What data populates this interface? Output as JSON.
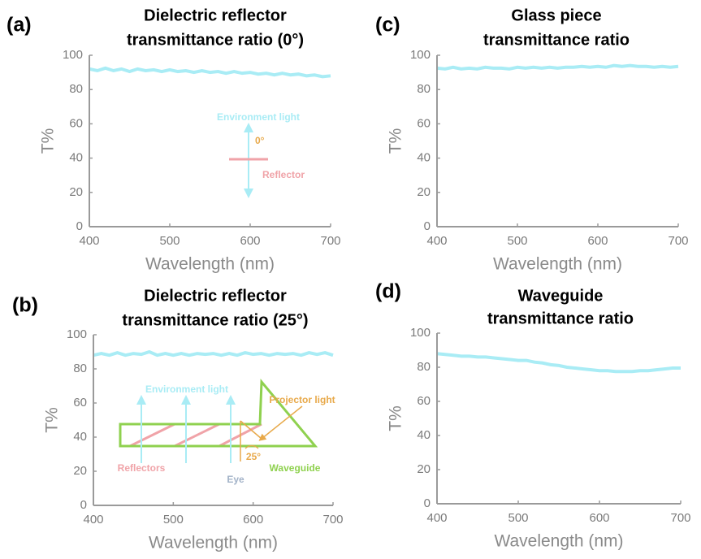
{
  "chart_data": [
    {
      "type": "line",
      "panel_label": "(a)",
      "title": [
        "Dielectric reflector",
        "transmittance ratio (0°)"
      ],
      "xlabel": "Wavelength (nm)",
      "ylabel": "T%",
      "color": "#a9ecf5",
      "x": [
        400,
        410,
        420,
        430,
        440,
        450,
        460,
        470,
        480,
        490,
        500,
        510,
        520,
        530,
        540,
        550,
        560,
        570,
        580,
        590,
        600,
        610,
        620,
        630,
        640,
        650,
        660,
        670,
        680,
        690,
        700
      ],
      "values": [
        92,
        91,
        92.5,
        91,
        92,
        90.5,
        92,
        91,
        91.5,
        90.5,
        91.5,
        90.5,
        91,
        90,
        91,
        90,
        90.5,
        89.5,
        90.5,
        89.5,
        90,
        89,
        89.5,
        88.5,
        89.5,
        88.5,
        89,
        88,
        88.5,
        87.5,
        88
      ],
      "xlim": [
        400,
        700
      ],
      "xticks": [
        400,
        500,
        600,
        700
      ],
      "ylim": [
        0,
        100
      ],
      "yticks": [
        0,
        20,
        40,
        60,
        80,
        100
      ],
      "annotations": [
        "Environment light",
        "0°",
        "Reflector"
      ]
    },
    {
      "type": "line",
      "panel_label": "(b)",
      "title": [
        "Dielectric reflector",
        "transmittance ratio (25°)"
      ],
      "xlabel": "Wavelength (nm)",
      "ylabel": "T%",
      "color": "#a9ecf5",
      "x": [
        400,
        410,
        420,
        430,
        440,
        450,
        460,
        470,
        480,
        490,
        500,
        510,
        520,
        530,
        540,
        550,
        560,
        570,
        580,
        590,
        600,
        610,
        620,
        630,
        640,
        650,
        660,
        670,
        680,
        690,
        700
      ],
      "values": [
        88,
        89,
        88,
        89.5,
        88,
        89,
        88.5,
        90,
        88,
        89,
        88,
        89,
        88,
        89,
        88.5,
        89,
        88,
        89,
        88,
        89.5,
        88.5,
        89,
        88,
        89,
        88.5,
        89,
        88,
        89.5,
        88.5,
        89.5,
        88
      ],
      "xlim": [
        400,
        700
      ],
      "xticks": [
        400,
        500,
        600,
        700
      ],
      "ylim": [
        0,
        100
      ],
      "yticks": [
        0,
        20,
        40,
        60,
        80,
        100
      ],
      "annotations": [
        "Environment light",
        "Projector light",
        "25°",
        "Reflectors",
        "Eye",
        "Waveguide"
      ]
    },
    {
      "type": "line",
      "panel_label": "(c)",
      "title": [
        "Glass piece",
        "transmittance ratio"
      ],
      "xlabel": "Wavelength (nm)",
      "ylabel": "T%",
      "color": "#a9ecf5",
      "x": [
        400,
        410,
        420,
        430,
        440,
        450,
        460,
        470,
        480,
        490,
        500,
        510,
        520,
        530,
        540,
        550,
        560,
        570,
        580,
        590,
        600,
        610,
        620,
        630,
        640,
        650,
        660,
        670,
        680,
        690,
        700
      ],
      "values": [
        92.5,
        92,
        93,
        92,
        92.5,
        92,
        93,
        92.5,
        92.5,
        92,
        93,
        92.5,
        93,
        92.5,
        93,
        92.5,
        93,
        93,
        93.5,
        93,
        93.5,
        93,
        94,
        93.5,
        94,
        93.5,
        93.5,
        93,
        93.5,
        93,
        93.5
      ],
      "xlim": [
        400,
        700
      ],
      "xticks": [
        400,
        500,
        600,
        700
      ],
      "ylim": [
        0,
        100
      ],
      "yticks": [
        0,
        20,
        40,
        60,
        80,
        100
      ]
    },
    {
      "type": "line",
      "panel_label": "(d)",
      "title": [
        "Waveguide",
        "transmittance ratio"
      ],
      "xlabel": "Wavelength (nm)",
      "ylabel": "T%",
      "color": "#a9ecf5",
      "x": [
        400,
        410,
        420,
        430,
        440,
        450,
        460,
        470,
        480,
        490,
        500,
        510,
        520,
        530,
        540,
        550,
        560,
        570,
        580,
        590,
        600,
        610,
        620,
        630,
        640,
        650,
        660,
        670,
        680,
        690,
        700
      ],
      "values": [
        88,
        87.5,
        87,
        86.5,
        86.5,
        86,
        86,
        85.5,
        85,
        84.5,
        84,
        84,
        83,
        82.5,
        81.5,
        81,
        80,
        79.5,
        79,
        78.5,
        78,
        78,
        77.5,
        77.5,
        77.5,
        78,
        78,
        78.5,
        79,
        79.5,
        79.5
      ],
      "xlim": [
        400,
        700
      ],
      "xticks": [
        400,
        500,
        600,
        700
      ],
      "ylim": [
        0,
        100
      ],
      "yticks": [
        0,
        20,
        40,
        60,
        80,
        100
      ]
    }
  ]
}
